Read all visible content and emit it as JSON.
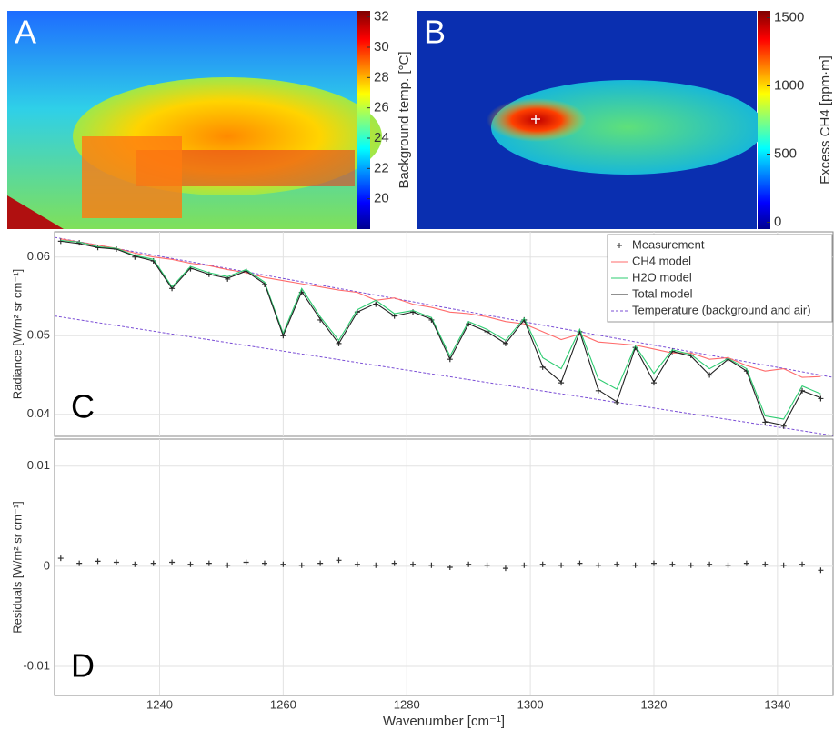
{
  "images": [
    {
      "letter": "A",
      "colorbar": {
        "label": "Background temp. [°C]",
        "lim": [
          18,
          32.4
        ],
        "ticks": [
          20,
          22,
          24,
          26,
          28,
          30,
          32
        ]
      }
    },
    {
      "letter": "B",
      "colorbar": {
        "label": "Excess CH4 [ppm·m]",
        "lim": [
          -50,
          1550
        ],
        "ticks": [
          0,
          500,
          1000,
          1500
        ]
      }
    }
  ],
  "chart_data": [
    {
      "type": "line",
      "letter": "C",
      "y_label": "Radiance [W/m² sr cm⁻¹]",
      "xlim": [
        1223,
        1349
      ],
      "ylim": [
        0.0372,
        0.0632
      ],
      "xticks": [
        1240,
        1260,
        1280,
        1300,
        1320,
        1340
      ],
      "yticks": [
        0.04,
        0.05,
        0.06
      ],
      "grid": true,
      "x": [
        1224,
        1227,
        1230,
        1233,
        1236,
        1239,
        1242,
        1245,
        1248,
        1251,
        1254,
        1257,
        1260,
        1263,
        1266,
        1269,
        1272,
        1275,
        1278,
        1281,
        1284,
        1287,
        1290,
        1293,
        1296,
        1299,
        1302,
        1305,
        1308,
        1311,
        1314,
        1317,
        1320,
        1323,
        1326,
        1329,
        1332,
        1335,
        1338,
        1341,
        1344,
        1347
      ],
      "series": [
        {
          "name": "Measurement",
          "color": "#333333",
          "marker": "+",
          "values": [
            0.062,
            0.0618,
            0.0612,
            0.061,
            0.06,
            0.0595,
            0.056,
            0.0585,
            0.0578,
            0.0572,
            0.0582,
            0.0565,
            0.05,
            0.0555,
            0.052,
            0.049,
            0.053,
            0.054,
            0.0525,
            0.053,
            0.052,
            0.047,
            0.0515,
            0.0505,
            0.049,
            0.052,
            0.046,
            0.044,
            0.0505,
            0.043,
            0.0415,
            0.0485,
            0.044,
            0.048,
            0.0475,
            0.045,
            0.047,
            0.0455,
            0.039,
            0.0385,
            0.043,
            0.042
          ]
        },
        {
          "name": "CH4 model",
          "color": "#ff6b6b",
          "values": [
            0.0623,
            0.0619,
            0.0615,
            0.0611,
            0.0605,
            0.06,
            0.0597,
            0.0592,
            0.0589,
            0.0584,
            0.058,
            0.0574,
            0.057,
            0.0566,
            0.0562,
            0.0558,
            0.0555,
            0.0545,
            0.0548,
            0.054,
            0.0536,
            0.053,
            0.0528,
            0.0524,
            0.0518,
            0.0515,
            0.0505,
            0.0495,
            0.0502,
            0.0492,
            0.049,
            0.0488,
            0.0483,
            0.0478,
            0.0478,
            0.047,
            0.0472,
            0.0462,
            0.0455,
            0.0458,
            0.0447,
            0.0448
          ]
        },
        {
          "name": "H2O model",
          "color": "#2ecc71",
          "values": [
            0.0621,
            0.0619,
            0.0613,
            0.0611,
            0.0602,
            0.0597,
            0.0562,
            0.0588,
            0.058,
            0.0575,
            0.0584,
            0.0568,
            0.0503,
            0.056,
            0.0524,
            0.0494,
            0.0533,
            0.0545,
            0.0528,
            0.0532,
            0.0523,
            0.0474,
            0.0518,
            0.0508,
            0.0494,
            0.0522,
            0.0472,
            0.0458,
            0.0508,
            0.0445,
            0.0432,
            0.0487,
            0.0452,
            0.0482,
            0.0476,
            0.0458,
            0.0471,
            0.0458,
            0.0398,
            0.0394,
            0.0436,
            0.0426
          ]
        },
        {
          "name": "Total model",
          "color": "#222222",
          "values": [
            0.062,
            0.0617,
            0.0612,
            0.061,
            0.0601,
            0.0595,
            0.056,
            0.0586,
            0.0578,
            0.0573,
            0.0582,
            0.0566,
            0.05,
            0.0556,
            0.0521,
            0.049,
            0.053,
            0.0541,
            0.0525,
            0.053,
            0.0521,
            0.047,
            0.0515,
            0.0505,
            0.049,
            0.052,
            0.0461,
            0.0441,
            0.0505,
            0.0431,
            0.0416,
            0.0485,
            0.0441,
            0.048,
            0.0474,
            0.045,
            0.047,
            0.0455,
            0.0391,
            0.0386,
            0.043,
            0.0421
          ]
        }
      ],
      "temperature": {
        "name": "Temperature (background and air)",
        "color": "#7b4fd6",
        "x": [
          1223,
          1349
        ],
        "background": [
          0.0625,
          0.0447
        ],
        "air": [
          0.0525,
          0.0373
        ]
      },
      "legend": "upper right"
    },
    {
      "type": "scatter",
      "letter": "D",
      "y_label": "Residuals [W/m² sr cm⁻¹]",
      "x_label": "Wavenumber [cm⁻¹]",
      "xlim": [
        1223,
        1349
      ],
      "ylim": [
        -0.0129,
        0.0127
      ],
      "xticks": [
        1240,
        1260,
        1280,
        1300,
        1320,
        1340
      ],
      "yticks": [
        -0.01,
        0,
        0.01
      ],
      "grid": true,
      "color": "#333333",
      "x": [
        1224,
        1227,
        1230,
        1233,
        1236,
        1239,
        1242,
        1245,
        1248,
        1251,
        1254,
        1257,
        1260,
        1263,
        1266,
        1269,
        1272,
        1275,
        1278,
        1281,
        1284,
        1287,
        1290,
        1293,
        1296,
        1299,
        1302,
        1305,
        1308,
        1311,
        1314,
        1317,
        1320,
        1323,
        1326,
        1329,
        1332,
        1335,
        1338,
        1341,
        1344,
        1347
      ],
      "values": [
        0.0008,
        0.0003,
        0.0005,
        0.0004,
        0.0002,
        0.0003,
        0.0004,
        0.0002,
        0.0003,
        0.0001,
        0.0004,
        0.0003,
        0.0002,
        0.0001,
        0.0003,
        0.0006,
        0.0002,
        0.0001,
        0.0003,
        0.0002,
        0.0001,
        -0.0001,
        0.0002,
        0.0001,
        -0.0002,
        0.0001,
        0.0002,
        0.0001,
        0.0003,
        0.0001,
        0.0002,
        0.0001,
        0.0003,
        0.0002,
        0.0001,
        0.0002,
        0.0001,
        0.0003,
        0.0002,
        0.0001,
        0.0002,
        -0.0004
      ]
    }
  ]
}
